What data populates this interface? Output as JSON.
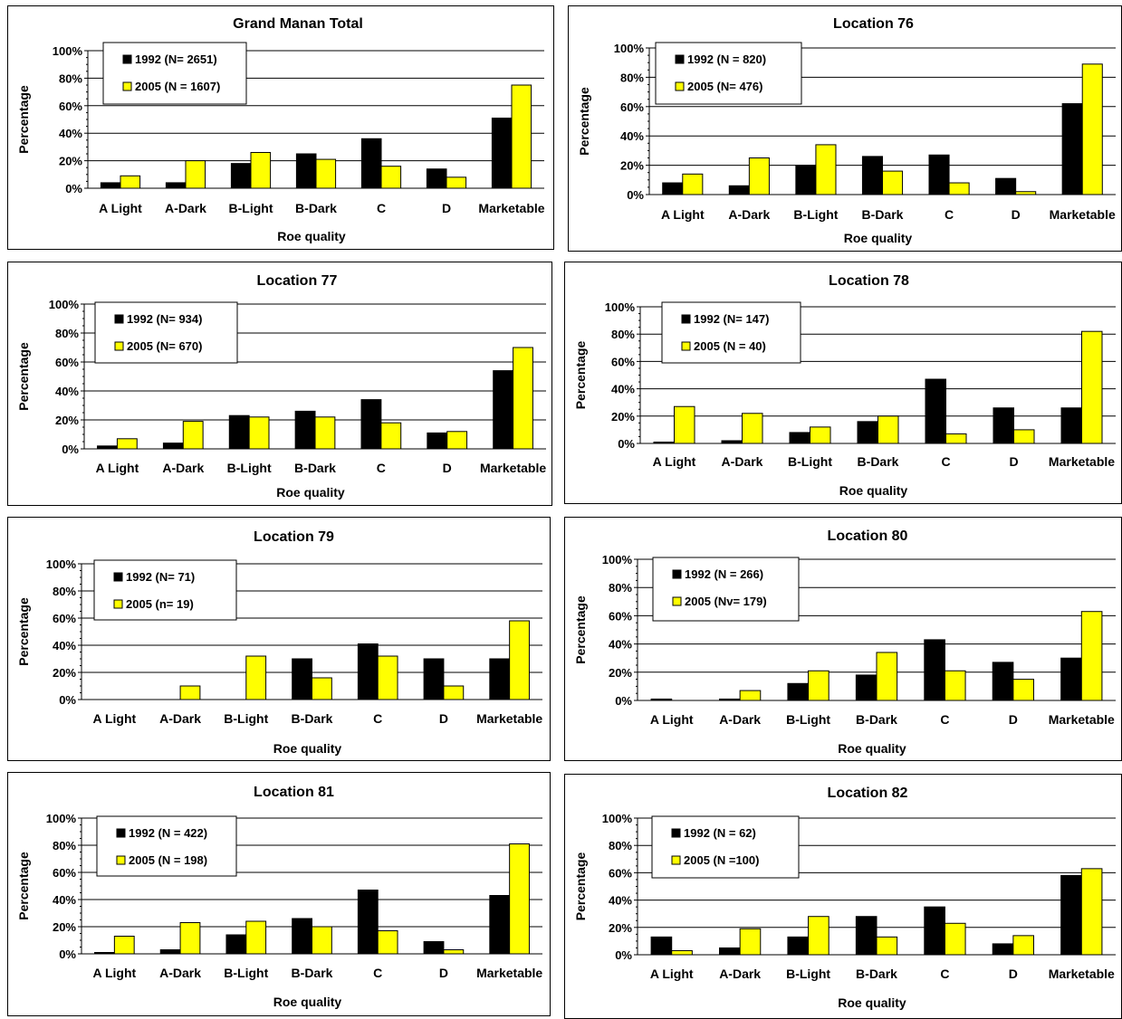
{
  "chart_data": [
    {
      "type": "bar",
      "title": "Grand Manan Total",
      "xlabel": "Roe quality",
      "ylabel": "Percentage",
      "ylim": [
        0,
        100
      ],
      "ytick_labels": [
        "0%",
        "20%",
        "40%",
        "60%",
        "80%",
        "100%"
      ],
      "categories": [
        "A Light",
        "A-Dark",
        "B-Light",
        "B-Dark",
        "C",
        "D",
        "Marketable"
      ],
      "legend_position": "top-left",
      "series": [
        {
          "name": "1992 (N= 2651)",
          "color": "#000000",
          "values": [
            4,
            4,
            18,
            25,
            36,
            14,
            51
          ]
        },
        {
          "name": "2005 (N = 1607)",
          "color": "#ffff00",
          "values": [
            9,
            20,
            26,
            21,
            16,
            8,
            75
          ]
        }
      ]
    },
    {
      "type": "bar",
      "title": "Location 76",
      "xlabel": "Roe quality",
      "ylabel": "Percentage",
      "ylim": [
        0,
        100
      ],
      "ytick_labels": [
        "0%",
        "20%",
        "40%",
        "60%",
        "80%",
        "100%"
      ],
      "categories": [
        "A Light",
        "A-Dark",
        "B-Light",
        "B-Dark",
        "C",
        "D",
        "Marketable"
      ],
      "legend_position": "top-left",
      "series": [
        {
          "name": "1992 (N = 820)",
          "color": "#000000",
          "values": [
            8,
            6,
            20,
            26,
            27,
            11,
            62
          ]
        },
        {
          "name": "2005 (N= 476)",
          "color": "#ffff00",
          "values": [
            14,
            25,
            34,
            16,
            8,
            2,
            89
          ]
        }
      ]
    },
    {
      "type": "bar",
      "title": "Location 77",
      "xlabel": "Roe quality",
      "ylabel": "Percentage",
      "ylim": [
        0,
        100
      ],
      "ytick_labels": [
        "0%",
        "20%",
        "40%",
        "60%",
        "80%",
        "100%"
      ],
      "categories": [
        "A Light",
        "A-Dark",
        "B-Light",
        "B-Dark",
        "C",
        "D",
        "Marketable"
      ],
      "legend_position": "top-left",
      "series": [
        {
          "name": "1992 (N= 934)",
          "color": "#000000",
          "values": [
            2,
            4,
            23,
            26,
            34,
            11,
            54
          ]
        },
        {
          "name": "2005 (N= 670)",
          "color": "#ffff00",
          "values": [
            7,
            19,
            22,
            22,
            18,
            12,
            70
          ]
        }
      ]
    },
    {
      "type": "bar",
      "title": "Location 78",
      "xlabel": "Roe quality",
      "ylabel": "Percentage",
      "ylim": [
        0,
        100
      ],
      "ytick_labels": [
        "0%",
        "20%",
        "40%",
        "60%",
        "80%",
        "100%"
      ],
      "categories": [
        "A Light",
        "A-Dark",
        "B-Light",
        "B-Dark",
        "C",
        "D",
        "Marketable"
      ],
      "legend_position": "top-left",
      "series": [
        {
          "name": "1992 (N= 147)",
          "color": "#000000",
          "values": [
            1,
            2,
            8,
            16,
            47,
            26,
            26
          ]
        },
        {
          "name": "2005 (N = 40)",
          "color": "#ffff00",
          "values": [
            27,
            22,
            12,
            20,
            7,
            10,
            82
          ]
        }
      ]
    },
    {
      "type": "bar",
      "title": "Location 79",
      "xlabel": "Roe quality",
      "ylabel": "Percentage",
      "ylim": [
        0,
        100
      ],
      "ytick_labels": [
        "0%",
        "20%",
        "40%",
        "60%",
        "80%",
        "100%"
      ],
      "categories": [
        "A Light",
        "A-Dark",
        "B-Light",
        "B-Dark",
        "C",
        "D",
        "Marketable"
      ],
      "legend_position": "top-left",
      "series": [
        {
          "name": "1992 (N= 71)",
          "color": "#000000",
          "values": [
            0,
            0,
            0,
            30,
            41,
            30,
            30
          ]
        },
        {
          "name": "2005 (n= 19)",
          "color": "#ffff00",
          "values": [
            0,
            10,
            32,
            16,
            32,
            10,
            58
          ]
        }
      ]
    },
    {
      "type": "bar",
      "title": "Location 80",
      "xlabel": "Roe quality",
      "ylabel": "Percentage",
      "ylim": [
        0,
        100
      ],
      "ytick_labels": [
        "0%",
        "20%",
        "40%",
        "60%",
        "80%",
        "100%"
      ],
      "categories": [
        "A Light",
        "A-Dark",
        "B-Light",
        "B-Dark",
        "C",
        "D",
        "Marketable"
      ],
      "legend_position": "top-left",
      "series": [
        {
          "name": "1992 (N = 266)",
          "color": "#000000",
          "values": [
            1,
            1,
            12,
            18,
            43,
            27,
            30
          ]
        },
        {
          "name": "2005 (Nv= 179)",
          "color": "#ffff00",
          "values": [
            0,
            7,
            21,
            34,
            21,
            15,
            63
          ]
        }
      ]
    },
    {
      "type": "bar",
      "title": "Location 81",
      "xlabel": "Roe quality",
      "ylabel": "Percentage",
      "ylim": [
        0,
        100
      ],
      "ytick_labels": [
        "0%",
        "20%",
        "40%",
        "60%",
        "80%",
        "100%"
      ],
      "categories": [
        "A Light",
        "A-Dark",
        "B-Light",
        "B-Dark",
        "C",
        "D",
        "Marketable"
      ],
      "legend_position": "top-left",
      "series": [
        {
          "name": "1992 (N = 422)",
          "color": "#000000",
          "values": [
            1,
            3,
            14,
            26,
            47,
            9,
            43
          ]
        },
        {
          "name": "2005 (N = 198)",
          "color": "#ffff00",
          "values": [
            13,
            23,
            24,
            20,
            17,
            3,
            81
          ]
        }
      ]
    },
    {
      "type": "bar",
      "title": "Location 82",
      "xlabel": "Roe quality",
      "ylabel": "Percentage",
      "ylim": [
        0,
        100
      ],
      "ytick_labels": [
        "0%",
        "20%",
        "40%",
        "60%",
        "80%",
        "100%"
      ],
      "categories": [
        "A Light",
        "A-Dark",
        "B-Light",
        "B-Dark",
        "C",
        "D",
        "Marketable"
      ],
      "legend_position": "top-left",
      "series": [
        {
          "name": "1992 (N = 62)",
          "color": "#000000",
          "values": [
            13,
            5,
            13,
            28,
            35,
            8,
            58
          ]
        },
        {
          "name": "2005 (N =100)",
          "color": "#ffff00",
          "values": [
            3,
            19,
            28,
            13,
            23,
            14,
            63
          ]
        }
      ]
    }
  ]
}
